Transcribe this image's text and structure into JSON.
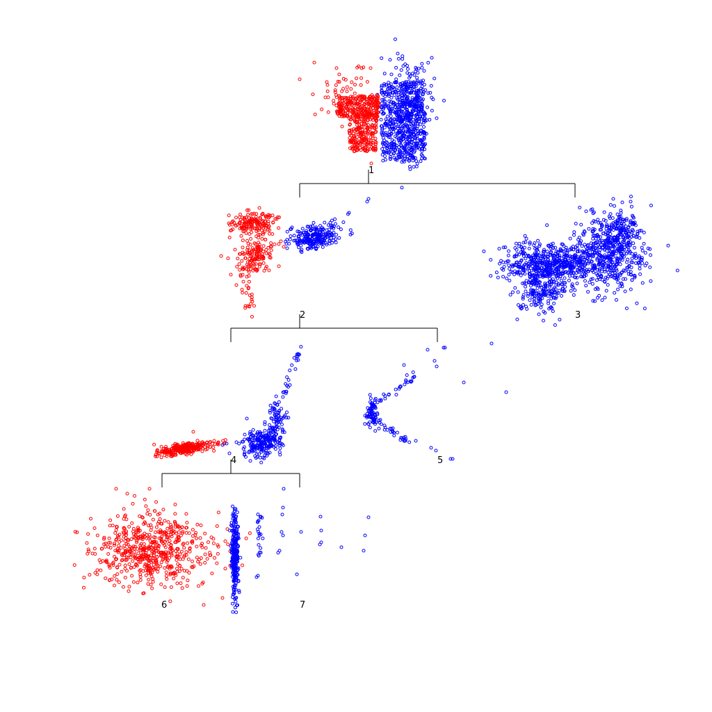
{
  "diagram": {
    "type": "hierarchical-scatter-tree",
    "background": "#ffffff",
    "colors": {
      "class_a": "#ff0000",
      "class_b": "#0000ff",
      "edge": "#000000"
    },
    "nodes": [
      {
        "id": "1",
        "label": "1",
        "parent": null
      },
      {
        "id": "2",
        "label": "2",
        "parent": "1"
      },
      {
        "id": "3",
        "label": "3",
        "parent": "1"
      },
      {
        "id": "4",
        "label": "4",
        "parent": "2"
      },
      {
        "id": "5",
        "label": "5",
        "parent": "2"
      },
      {
        "id": "6",
        "label": "6",
        "parent": "4"
      },
      {
        "id": "7",
        "label": "7",
        "parent": "4"
      }
    ]
  }
}
